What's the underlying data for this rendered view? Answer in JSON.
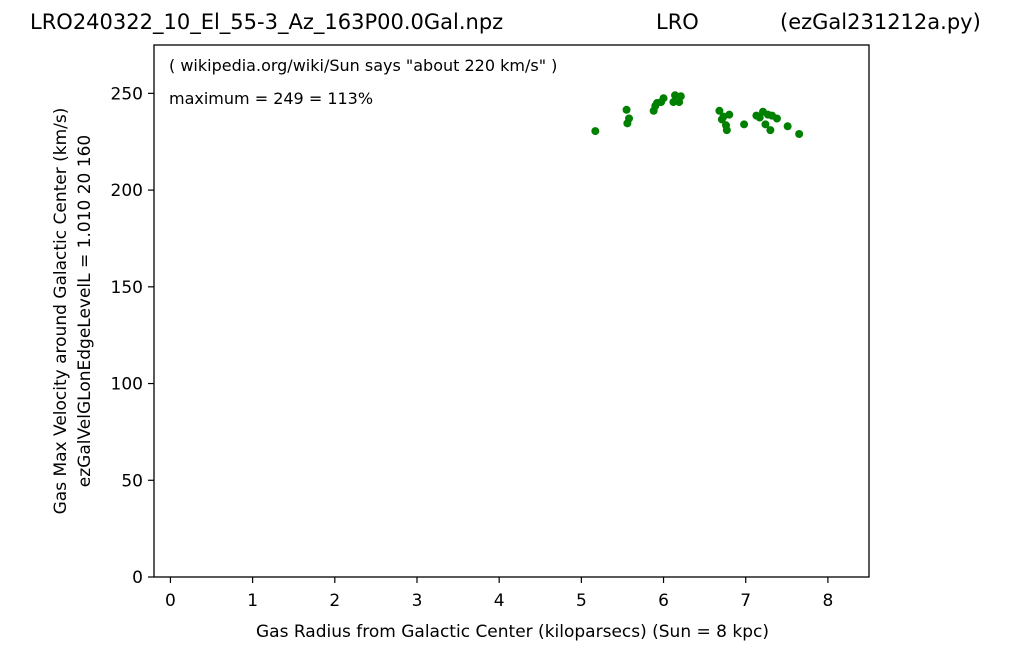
{
  "header": {
    "title_left": "LRO240322_10_El_55-3_Az_163P00.0Gal.npz",
    "title_center": "LRO",
    "title_right": "(ezGal231212a.py)"
  },
  "chart_data": {
    "type": "scatter",
    "xlabel": "Gas Radius from Galactic Center (kiloparsecs)  (Sun = 8 kpc)",
    "ylabel_line1": "Gas Max Velocity around Galactic Center (km/s)",
    "ylabel_line2": "ezGalVelGLonEdgeLevelL = 1.010  20  160",
    "xlim": [
      -0.2,
      8.5
    ],
    "ylim": [
      0,
      275
    ],
    "xticks": [
      0,
      1,
      2,
      3,
      4,
      5,
      6,
      7,
      8
    ],
    "yticks": [
      0,
      50,
      100,
      150,
      200,
      250
    ],
    "grid": false,
    "annotations": [
      "( wikipedia.org/wiki/Sun says \"about 220 km/s\" )",
      "maximum = 249 = 113%"
    ],
    "marker_color": "#008000",
    "points": [
      {
        "x": 5.17,
        "y": 230.5
      },
      {
        "x": 5.55,
        "y": 241.5
      },
      {
        "x": 5.56,
        "y": 234.5
      },
      {
        "x": 5.58,
        "y": 237.0
      },
      {
        "x": 5.88,
        "y": 241.0
      },
      {
        "x": 5.9,
        "y": 243.5
      },
      {
        "x": 5.92,
        "y": 245.0
      },
      {
        "x": 5.97,
        "y": 245.5
      },
      {
        "x": 6.0,
        "y": 247.5
      },
      {
        "x": 6.12,
        "y": 245.5
      },
      {
        "x": 6.14,
        "y": 249.0
      },
      {
        "x": 6.19,
        "y": 245.5
      },
      {
        "x": 6.21,
        "y": 248.5
      },
      {
        "x": 6.68,
        "y": 241.0
      },
      {
        "x": 6.71,
        "y": 236.5
      },
      {
        "x": 6.73,
        "y": 238.0
      },
      {
        "x": 6.76,
        "y": 233.5
      },
      {
        "x": 6.77,
        "y": 231.0
      },
      {
        "x": 6.8,
        "y": 239.0
      },
      {
        "x": 6.98,
        "y": 234.0
      },
      {
        "x": 7.13,
        "y": 238.5
      },
      {
        "x": 7.17,
        "y": 237.5
      },
      {
        "x": 7.21,
        "y": 240.5
      },
      {
        "x": 7.24,
        "y": 234.0
      },
      {
        "x": 7.27,
        "y": 239.0
      },
      {
        "x": 7.3,
        "y": 231.0
      },
      {
        "x": 7.32,
        "y": 238.5
      },
      {
        "x": 7.38,
        "y": 237.0
      },
      {
        "x": 7.51,
        "y": 233.0
      },
      {
        "x": 7.65,
        "y": 229.0
      }
    ]
  }
}
